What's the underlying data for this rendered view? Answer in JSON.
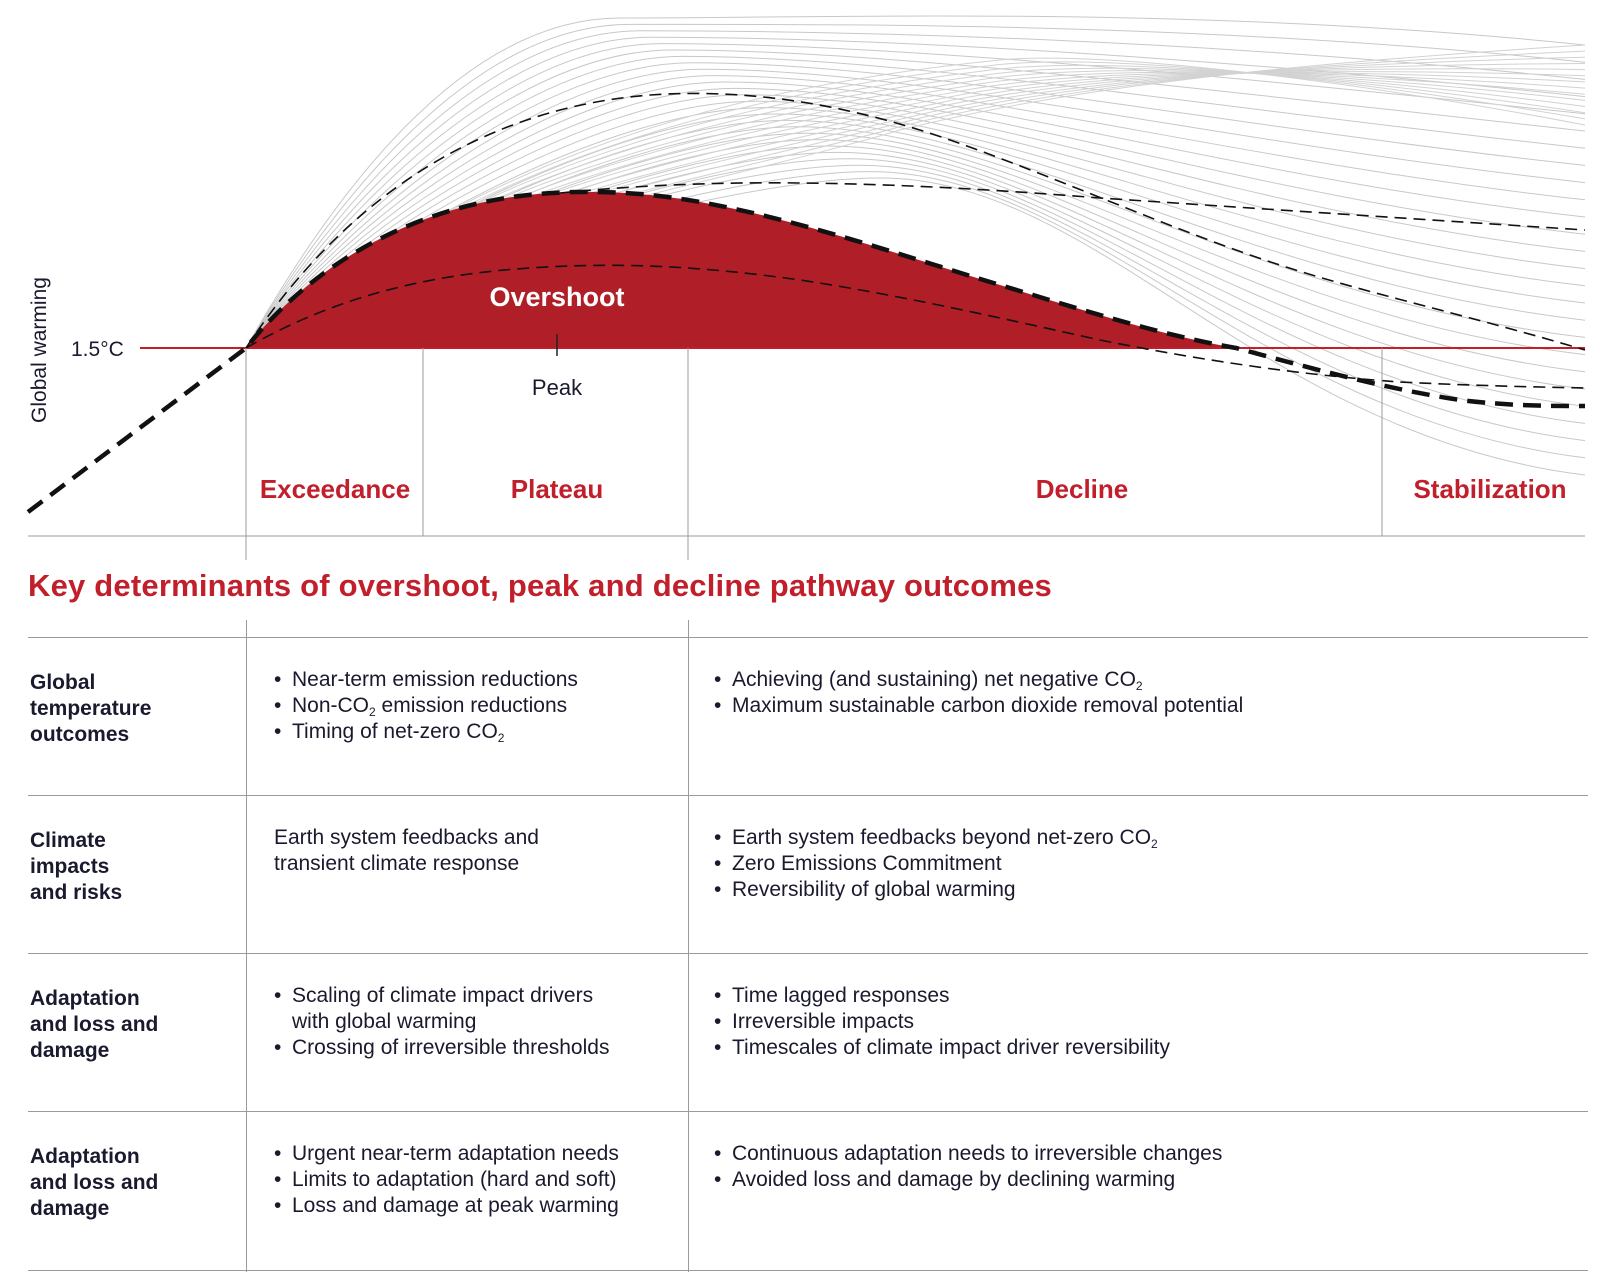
{
  "diagram": {
    "y_axis_label": "Global warming",
    "threshold_label": "1.5°C",
    "overshoot_label": "Overshoot",
    "peak_label": "Peak",
    "stages": [
      "Exceedance",
      "Plateau",
      "Decline",
      "Stabilization"
    ],
    "colors": {
      "accent": "#c01f2b",
      "overshoot_fill": "#b01e27",
      "pathways": "#c8c8c8",
      "text": "#1a1a2e"
    }
  },
  "heading": "Key determinants of overshoot, peak and decline pathway outcomes",
  "rows": [
    {
      "label_lines": [
        "Global",
        "temperature",
        "outcomes"
      ],
      "left": {
        "bullets": [
          [
            {
              "t": "Near-term emission reductions"
            }
          ],
          [
            {
              "t": "Non-CO"
            },
            {
              "sub": "2"
            },
            {
              "t": " emission reductions"
            }
          ],
          [
            {
              "t": "Timing of net-zero CO"
            },
            {
              "sub": "2"
            }
          ]
        ]
      },
      "right": {
        "bullets": [
          [
            {
              "t": "Achieving (and sustaining) net negative CO"
            },
            {
              "sub": "2"
            }
          ],
          [
            {
              "t": "Maximum sustainable carbon dioxide removal potential"
            }
          ]
        ]
      }
    },
    {
      "label_lines": [
        "Climate",
        "impacts",
        "and risks"
      ],
      "left": {
        "plain_lines": [
          "Earth system feedbacks and",
          "transient climate response"
        ]
      },
      "right": {
        "bullets": [
          [
            {
              "t": "Earth system feedbacks beyond net-zero CO"
            },
            {
              "sub": "2"
            }
          ],
          [
            {
              "t": "Zero Emissions Commitment"
            }
          ],
          [
            {
              "t": "Reversibility of global warming"
            }
          ]
        ]
      }
    },
    {
      "label_lines": [
        "Adaptation",
        "and loss and",
        "damage"
      ],
      "left": {
        "bullets": [
          [
            {
              "t": "Scaling of climate impact drivers"
            }
          ],
          [
            {
              "t": "with global warming",
              "cont": true
            }
          ],
          [
            {
              "t": "Crossing of irreversible thresholds"
            }
          ]
        ]
      },
      "right": {
        "bullets": [
          [
            {
              "t": "Time lagged responses"
            }
          ],
          [
            {
              "t": "Irreversible impacts"
            }
          ],
          [
            {
              "t": "Timescales of climate impact driver reversibility"
            }
          ]
        ]
      }
    },
    {
      "label_lines": [
        "Adaptation",
        "and loss and",
        "damage"
      ],
      "left": {
        "bullets": [
          [
            {
              "t": "Urgent near-term adaptation needs"
            }
          ],
          [
            {
              "t": "Limits to adaptation (hard and soft)"
            }
          ],
          [
            {
              "t": "Loss and damage at peak warming"
            }
          ]
        ]
      },
      "right": {
        "bullets": [
          [
            {
              "t": "Continuous adaptation needs to irreversible changes"
            }
          ],
          [
            {
              "t": "Avoided loss and damage by declining warming"
            }
          ]
        ]
      }
    }
  ]
}
